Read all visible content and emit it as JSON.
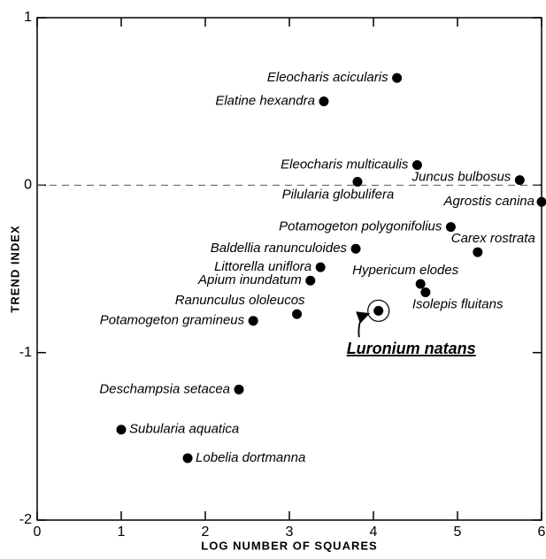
{
  "chart_data": {
    "type": "scatter",
    "x_label": "LOG NUMBER OF SQUARES",
    "y_label": "TREND INDEX",
    "xlim": [
      0,
      6
    ],
    "ylim": [
      -2,
      1
    ],
    "xticks": [
      0,
      1,
      2,
      3,
      4,
      5,
      6
    ],
    "yticks": [
      -2,
      -1,
      0,
      1
    ],
    "zero_line": true,
    "color": "#000000",
    "points": [
      {
        "label": "Eleocharis acicularis",
        "x": 4.28,
        "y": 0.64
      },
      {
        "label": "Elatine hexandra",
        "x": 3.41,
        "y": 0.5
      },
      {
        "label": "Eleocharis multicaulis",
        "x": 4.52,
        "y": 0.12
      },
      {
        "label": "Pilularia globulifera",
        "x": 3.81,
        "y": 0.02
      },
      {
        "label": "Juncus bulbosus",
        "x": 5.74,
        "y": 0.03
      },
      {
        "label": "Agrostis canina",
        "x": 6.0,
        "y": -0.1
      },
      {
        "label": "Potamogeton polygonifolius",
        "x": 4.92,
        "y": -0.25
      },
      {
        "label": "Baldellia ranunculoides",
        "x": 3.79,
        "y": -0.38
      },
      {
        "label": "Carex rostrata",
        "x": 5.24,
        "y": -0.4
      },
      {
        "label": "Littorella uniflora",
        "x": 3.37,
        "y": -0.49
      },
      {
        "label": "Apium inundatum",
        "x": 3.25,
        "y": -0.57
      },
      {
        "label": "Hypericum elodes",
        "x": 4.56,
        "y": -0.59
      },
      {
        "label": "Isolepis fluitans",
        "x": 4.62,
        "y": -0.64
      },
      {
        "label": "Ranunculus ololeucos",
        "x": 3.09,
        "y": -0.77
      },
      {
        "label": "Luronium natans",
        "x": 4.06,
        "y": -0.75,
        "highlight": true
      },
      {
        "label": "Potamogeton gramineus",
        "x": 2.57,
        "y": -0.81
      },
      {
        "label": "Deschampsia setacea",
        "x": 2.4,
        "y": -1.22
      },
      {
        "label": "Subularia aquatica",
        "x": 1.0,
        "y": -1.46
      },
      {
        "label": "Lobelia dortmanna",
        "x": 1.79,
        "y": -1.63
      }
    ]
  }
}
